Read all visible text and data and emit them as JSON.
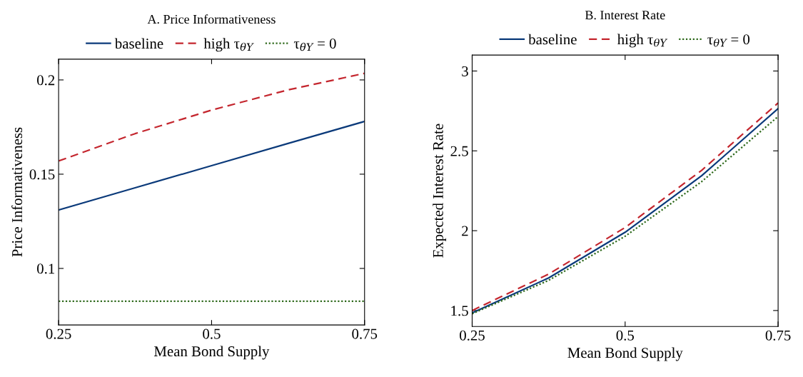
{
  "chart_data": [
    {
      "type": "line",
      "title": "A. Price Informativeness",
      "xlabel": "Mean Bond Supply",
      "ylabel": "Price Informativeness",
      "x": [
        0.25,
        0.375,
        0.5,
        0.625,
        0.75
      ],
      "series": [
        {
          "name": "baseline",
          "color": "#0b3a7a",
          "line_style": "solid",
          "values": [
            0.131,
            0.1428,
            0.1545,
            0.1663,
            0.178
          ]
        },
        {
          "name": "high τ$_{θY}$",
          "color": "#c4262e",
          "line_style": "dashed",
          "values": [
            0.157,
            0.1715,
            0.184,
            0.1947,
            0.2035
          ]
        },
        {
          "name": "τ$_{θY}$ = 0",
          "color": "#2f6a1c",
          "line_style": "dotted",
          "values": [
            0.0826,
            0.0826,
            0.0826,
            0.0826,
            0.0826
          ]
        }
      ],
      "xlim": [
        0.25,
        0.75
      ],
      "ylim": [
        0.07,
        0.211
      ],
      "xticks": [
        0.25,
        0.5,
        0.75
      ],
      "yticks": [
        0.1,
        0.15,
        0.2
      ],
      "legend": "top",
      "grid": false,
      "marker": "none"
    },
    {
      "type": "line",
      "title": "B. Interest Rate",
      "xlabel": "Mean Bond Supply",
      "ylabel": "Expected Interest Rate",
      "x": [
        0.25,
        0.375,
        0.5,
        0.625,
        0.75
      ],
      "series": [
        {
          "name": "baseline",
          "color": "#0b3a7a",
          "line_style": "solid",
          "values": [
            1.485,
            1.704,
            1.99,
            2.344,
            2.765
          ]
        },
        {
          "name": "high τ$_{θY}$",
          "color": "#c4262e",
          "line_style": "dashed",
          "values": [
            1.5,
            1.728,
            2.02,
            2.378,
            2.8
          ]
        },
        {
          "name": "τ$_{θY}$ = 0",
          "color": "#2f6a1c",
          "line_style": "dotted",
          "values": [
            1.48,
            1.689,
            1.965,
            2.307,
            2.715
          ]
        }
      ],
      "xlim": [
        0.25,
        0.75
      ],
      "ylim": [
        1.4,
        3.1
      ],
      "xticks": [
        0.25,
        0.5,
        0.75
      ],
      "yticks": [
        1.5,
        2,
        2.5,
        3
      ],
      "legend": "top",
      "grid": false,
      "marker": "none"
    }
  ]
}
